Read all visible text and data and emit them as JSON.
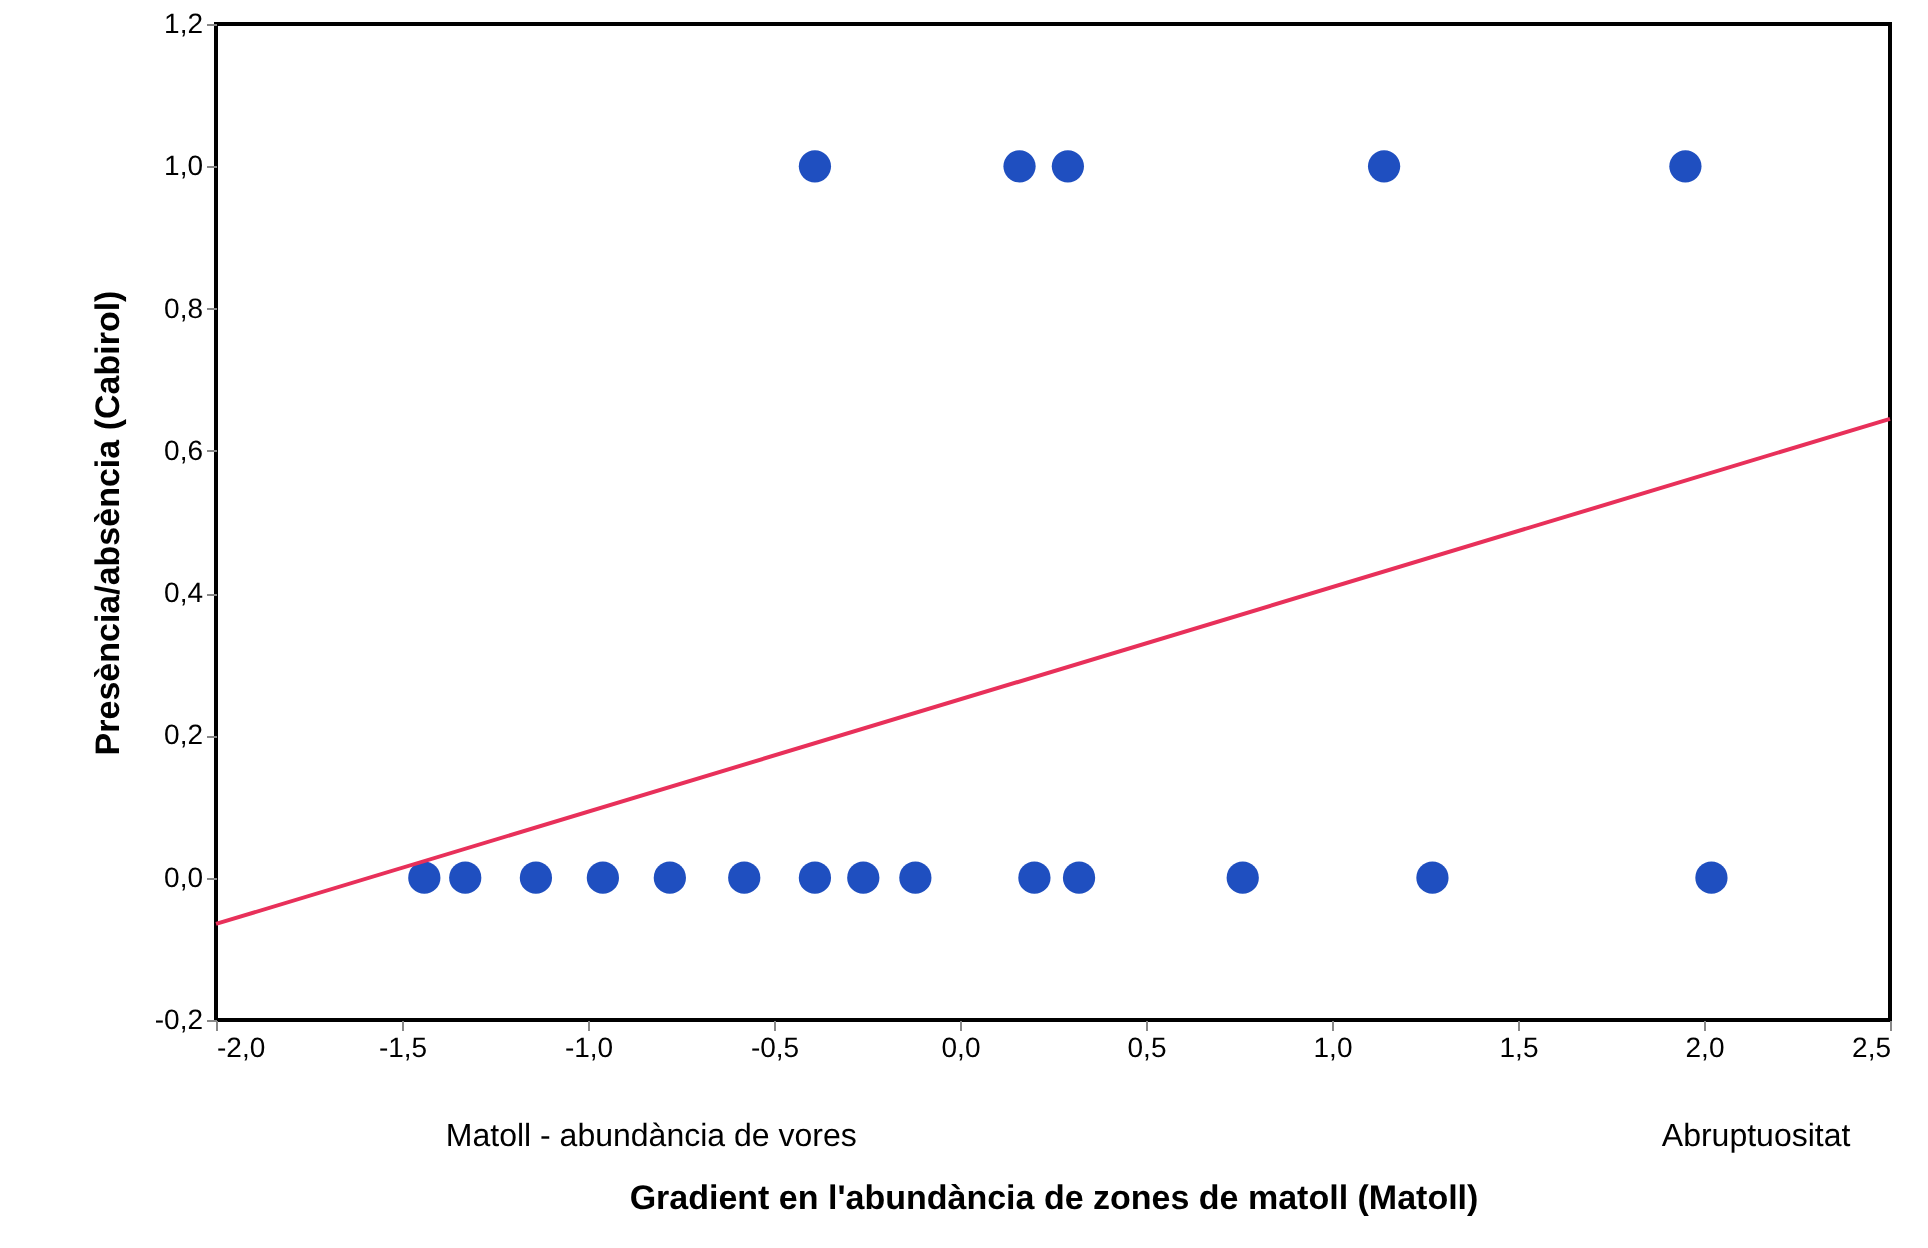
{
  "chart_data": {
    "type": "scatter",
    "xlabel": "Gradient en l'abundància de zones de matoll (Matoll)",
    "ylabel": "Presència/absència (Cabirol)",
    "annotations": [
      "Matoll - abundància de vores",
      "Abruptuositat"
    ],
    "xlim": [
      -2.0,
      2.5
    ],
    "ylim": [
      -0.2,
      1.2
    ],
    "xticks": [
      {
        "value": -2.0,
        "label": "-2,0"
      },
      {
        "value": -1.5,
        "label": "-1,5"
      },
      {
        "value": -1.0,
        "label": "-1,0"
      },
      {
        "value": -0.5,
        "label": "-0,5"
      },
      {
        "value": 0.0,
        "label": "0,0"
      },
      {
        "value": 0.5,
        "label": "0,5"
      },
      {
        "value": 1.0,
        "label": "1,0"
      },
      {
        "value": 1.5,
        "label": "1,5"
      },
      {
        "value": 2.0,
        "label": "2,0"
      },
      {
        "value": 2.5,
        "label": "2,5"
      }
    ],
    "yticks": [
      {
        "value": -0.2,
        "label": "-0,2"
      },
      {
        "value": 0.0,
        "label": "0,0"
      },
      {
        "value": 0.2,
        "label": "0,2"
      },
      {
        "value": 0.4,
        "label": "0,4"
      },
      {
        "value": 0.6,
        "label": "0,6"
      },
      {
        "value": 0.8,
        "label": "0,8"
      },
      {
        "value": 1.0,
        "label": "1,0"
      },
      {
        "value": 1.2,
        "label": "1,2"
      }
    ],
    "grid": false,
    "series": [
      {
        "marker": "circle",
        "color": "#1f4fc0",
        "x": [
          -0.39,
          0.16,
          0.29,
          1.14,
          1.95,
          -1.44,
          -1.33,
          -1.14,
          -0.96,
          -0.78,
          -0.58,
          -0.39,
          -0.26,
          -0.12,
          0.2,
          0.32,
          0.76,
          1.27,
          2.02
        ],
        "values": [
          1,
          1,
          1,
          1,
          1,
          0,
          0,
          0,
          0,
          0,
          0,
          0,
          0,
          0,
          0,
          0,
          0,
          0,
          0
        ]
      },
      {
        "type": "line",
        "color": "#e8305a",
        "line_style": "solid",
        "x": [
          -2.0,
          2.5
        ],
        "values": [
          -0.065,
          0.645
        ]
      }
    ]
  }
}
